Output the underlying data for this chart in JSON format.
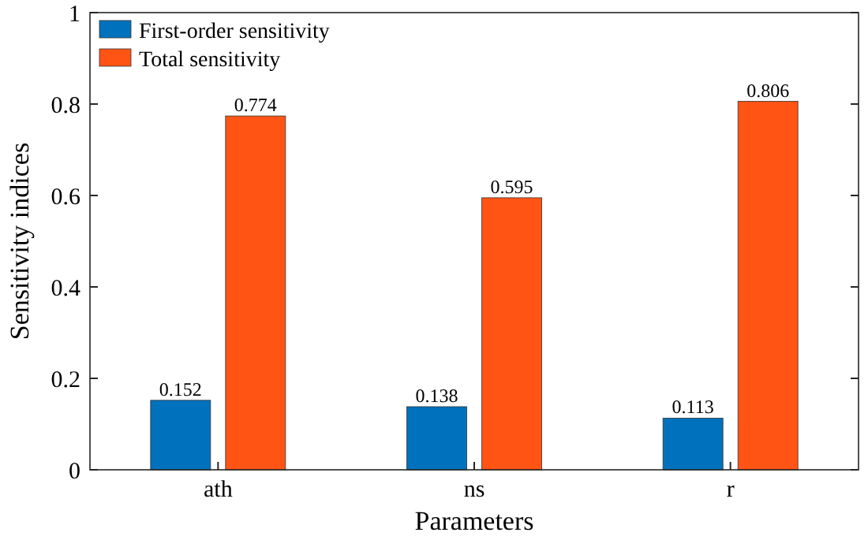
{
  "chart_data": {
    "type": "bar",
    "xlabel": "Parameters",
    "ylabel": "Sensitivity indices",
    "categories": [
      "ath",
      "ns",
      "r"
    ],
    "series": [
      {
        "name": "First-order sensitivity",
        "color": "#0072bd",
        "values": [
          0.152,
          0.138,
          0.113
        ]
      },
      {
        "name": "Total sensitivity",
        "color": "#ff5414",
        "values": [
          0.774,
          0.595,
          0.806
        ]
      }
    ],
    "ylim": [
      0,
      1
    ],
    "yticks": [
      0,
      0.2,
      0.4,
      0.6,
      0.8,
      1
    ],
    "data_labels": true,
    "legend": "top left",
    "grid": false
  }
}
